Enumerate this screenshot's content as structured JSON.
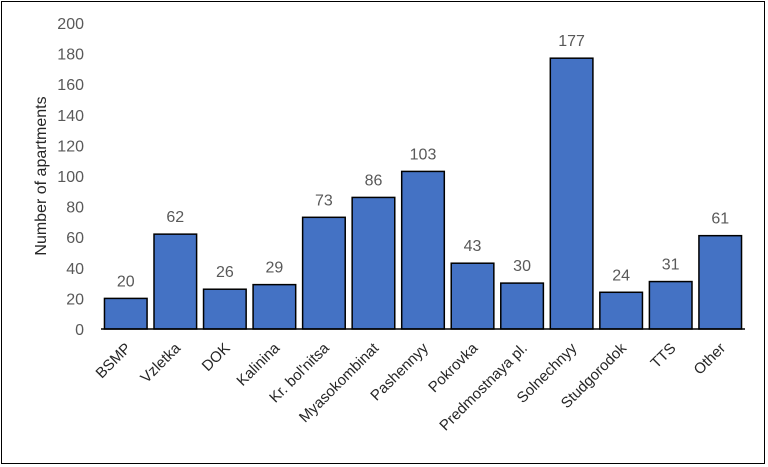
{
  "chart_data": {
    "type": "bar",
    "title": "",
    "xlabel": "",
    "ylabel": "Number of apartments",
    "ylim": [
      0,
      200
    ],
    "yticks": [
      "0",
      "20",
      "40",
      "60",
      "80",
      "100",
      "120",
      "140",
      "160",
      "180",
      "200"
    ],
    "grid": false,
    "legend": "none",
    "categories": [
      "BSMP",
      "Vzletka",
      "DOK",
      "Kalinina",
      "Kr. bol'nitsa",
      "Myasokombinat",
      "Pashennyy",
      "Pokrovka",
      "Predmostnaya pl.",
      "Solnechnyy",
      "Studgorodok",
      "TTS",
      "Other"
    ],
    "values": [
      20,
      62,
      26,
      29,
      73,
      86,
      103,
      43,
      30,
      177,
      24,
      31,
      61
    ],
    "colors": {
      "bar_fill": "#4472C4",
      "bar_stroke": "#000000",
      "axis": "#000000",
      "tick_text": "#595959",
      "label_text": "#262626"
    }
  }
}
